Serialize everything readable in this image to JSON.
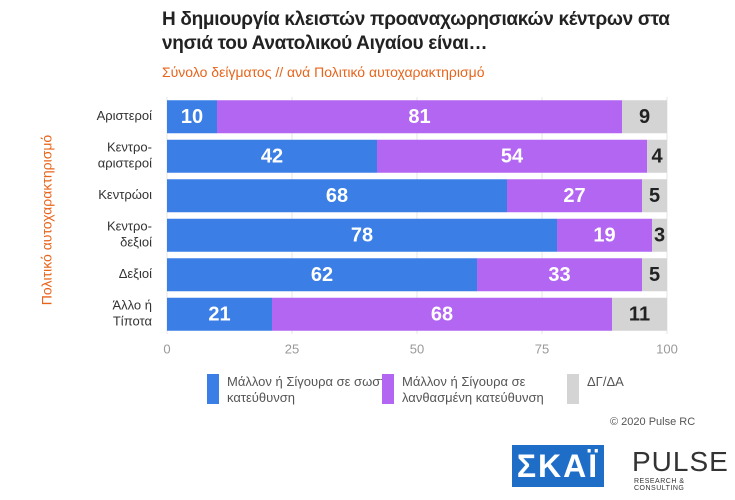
{
  "chart_data": {
    "type": "stacked-bar-horizontal",
    "title": "Η δημιουργία κλειστών προαναχωρησιακών κέντρων στα νησιά του Ανατολικού Αιγαίου είναι…",
    "subtitle": "Σύνολο δείγματος // ανά Πολιτικό αυτοχαρακτηρισμό",
    "y_label": "Πολιτικό αυτοχαρακτηρισμό",
    "categories": [
      [
        "Αριστεροί"
      ],
      [
        "Κεντρο-",
        "αριστεροί"
      ],
      [
        "Κεντρώοι"
      ],
      [
        "Κεντρο-",
        "δεξιοί"
      ],
      [
        "Δεξιοί"
      ],
      [
        "Άλλο ή",
        "Τίποτα"
      ]
    ],
    "series": [
      {
        "name": "Μάλλον ή Σίγουρα σε σωστή κατεύθυνση",
        "color": "#3a7ee6",
        "label_color": "#ffffff",
        "values": [
          10,
          42,
          68,
          78,
          62,
          21
        ]
      },
      {
        "name": "Μάλλον ή Σίγουρα σε λανθασμένη κατεύθυνση",
        "color": "#b266f2",
        "label_color": "#ffffff",
        "values": [
          81,
          54,
          27,
          19,
          33,
          68
        ]
      },
      {
        "name": "ΔΓ/ΔΑ",
        "color": "#d4d4d4",
        "label_color": "#222222",
        "values": [
          9,
          4,
          5,
          3,
          5,
          11
        ]
      }
    ],
    "xlim": [
      0,
      100
    ],
    "xticks": [
      0,
      25,
      50,
      75,
      100
    ],
    "grid": true,
    "footer": "© 2020 Pulse RC",
    "logos": {
      "skai": "ΣΚΑΪ",
      "pulse": "PULSE",
      "pulse_sub": "RESEARCH & CONSULTING"
    }
  }
}
